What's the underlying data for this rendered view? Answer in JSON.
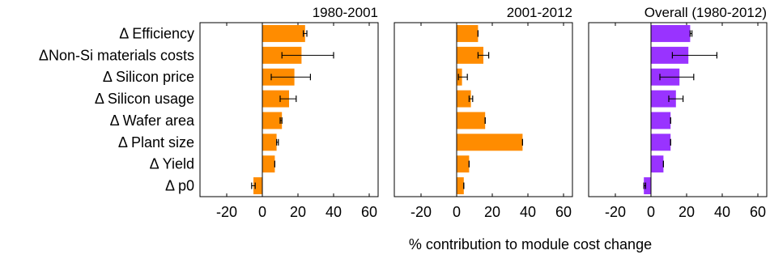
{
  "chart_data": {
    "type": "bar",
    "orientation": "horizontal",
    "categories": [
      "Δ Efficiency",
      "ΔNon-Si materials costs",
      "Δ Silicon price",
      "Δ Silicon usage",
      "Δ Wafer area",
      "Δ Plant size",
      "Δ Yield",
      "Δ p0"
    ],
    "xlabel": "% contribution to module cost change",
    "xlim": [
      -35,
      65
    ],
    "xticks": [
      -20,
      0,
      20,
      40,
      60
    ],
    "grid": false,
    "panels": [
      {
        "title": "1980-2001",
        "color": "#ff8c00",
        "values": [
          24,
          22,
          18,
          15,
          11,
          8,
          7,
          -5
        ],
        "error_low": [
          23,
          11,
          5,
          10,
          10,
          8,
          7,
          -6
        ],
        "error_high": [
          25,
          40,
          27,
          19,
          11,
          9,
          7,
          -4
        ]
      },
      {
        "title": "2001-2012",
        "color": "#ff8c00",
        "values": [
          12,
          15,
          3,
          8,
          16,
          37,
          7,
          4
        ],
        "error_low": [
          12,
          12,
          1,
          7,
          16,
          37,
          7,
          4
        ],
        "error_high": [
          12,
          18,
          6,
          9,
          16,
          37,
          7,
          4
        ]
      },
      {
        "title": "Overall (1980-2012)",
        "color": "#9933ff",
        "values": [
          22,
          21,
          16,
          14,
          11,
          11,
          7,
          -4
        ],
        "error_low": [
          22,
          12,
          5,
          10,
          11,
          11,
          7,
          -4
        ],
        "error_high": [
          23,
          37,
          24,
          18,
          11,
          11,
          7,
          -3
        ]
      }
    ]
  }
}
